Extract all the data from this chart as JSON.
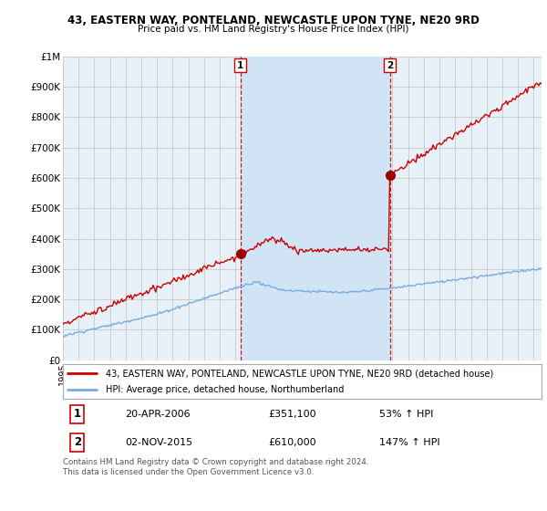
{
  "title1": "43, EASTERN WAY, PONTELAND, NEWCASTLE UPON TYNE, NE20 9RD",
  "title2": "Price paid vs. HM Land Registry's House Price Index (HPI)",
  "ylim": [
    0,
    1000000
  ],
  "yticks": [
    0,
    100000,
    200000,
    300000,
    400000,
    500000,
    600000,
    700000,
    800000,
    900000,
    1000000
  ],
  "ytick_labels": [
    "£0",
    "£100K",
    "£200K",
    "£300K",
    "£400K",
    "£500K",
    "£600K",
    "£700K",
    "£800K",
    "£900K",
    "£1M"
  ],
  "sale1_date": 2006.3,
  "sale1_price": 351100,
  "sale1_label": "1",
  "sale2_date": 2015.84,
  "sale2_price": 610000,
  "sale2_label": "2",
  "line_red_color": "#cc0000",
  "line_blue_color": "#7aabe0",
  "marker_color": "#990000",
  "vline_color": "#cc0000",
  "grid_color": "#cccccc",
  "bg_color": "#e8f0f8",
  "shade_color": "#d0e4f5",
  "legend_line1": "43, EASTERN WAY, PONTELAND, NEWCASTLE UPON TYNE, NE20 9RD (detached house)",
  "legend_line2": "HPI: Average price, detached house, Northumberland",
  "table_row1_num": "1",
  "table_row1_date": "20-APR-2006",
  "table_row1_price": "£351,100",
  "table_row1_hpi": "53% ↑ HPI",
  "table_row2_num": "2",
  "table_row2_date": "02-NOV-2015",
  "table_row2_price": "£610,000",
  "table_row2_hpi": "147% ↑ HPI",
  "footnote": "Contains HM Land Registry data © Crown copyright and database right 2024.\nThis data is licensed under the Open Government Licence v3.0.",
  "xstart": 1995.0,
  "xend": 2025.5
}
